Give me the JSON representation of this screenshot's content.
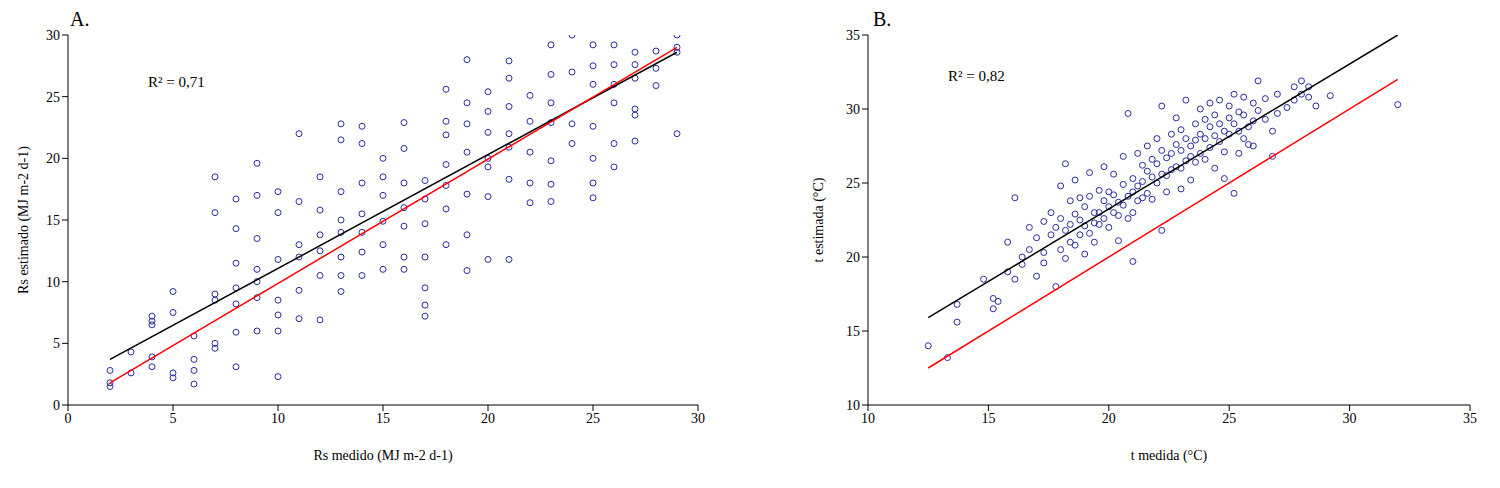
{
  "chart_data": [
    {
      "type": "scatter",
      "title": "A.",
      "xlabel": "Rs medido (MJ m-2 d-1)",
      "ylabel": "Rs estimado (MJ m-2 d-1)",
      "annotations": [
        "R² = 0,71"
      ],
      "xlim": [
        0,
        30
      ],
      "xticks": [
        0,
        5,
        10,
        15,
        20,
        25,
        30
      ],
      "ylim": [
        0,
        30
      ],
      "yticks": [
        0,
        5,
        10,
        15,
        20,
        25,
        30
      ],
      "grid": false,
      "series": [
        {
          "type": "scatter",
          "marker": "circle",
          "color": "#2b2b9e",
          "x": [
            2,
            2,
            2,
            3,
            3,
            4,
            4,
            4,
            4,
            4,
            5,
            5,
            5,
            5,
            6,
            6,
            6,
            6,
            7,
            7,
            7,
            7,
            7,
            7,
            8,
            8,
            8,
            8,
            8,
            8,
            8,
            9,
            9,
            9,
            9,
            9,
            9,
            9,
            10,
            10,
            10,
            10,
            10,
            10,
            10,
            11,
            11,
            11,
            11,
            11,
            11,
            12,
            12,
            12,
            12,
            12,
            12,
            13,
            13,
            13,
            13,
            13,
            13,
            13,
            13,
            14,
            14,
            14,
            14,
            14,
            14,
            14,
            15,
            15,
            15,
            15,
            15,
            15,
            16,
            16,
            16,
            16,
            16,
            16,
            16,
            17,
            17,
            17,
            17,
            17,
            17,
            17,
            18,
            18,
            18,
            18,
            18,
            18,
            18,
            19,
            19,
            19,
            19,
            19,
            19,
            19,
            20,
            20,
            20,
            20,
            20,
            20,
            20,
            21,
            21,
            21,
            21,
            21,
            21,
            21,
            22,
            22,
            22,
            22,
            22,
            23,
            23,
            23,
            23,
            23,
            23,
            23,
            24,
            24,
            24,
            24,
            25,
            25,
            25,
            25,
            25,
            25,
            25,
            26,
            26,
            26,
            26,
            26,
            26,
            27,
            27,
            27,
            27,
            27,
            27,
            28,
            28,
            28,
            29,
            29,
            29,
            29
          ],
          "y": [
            1.5,
            2.8,
            1.8,
            4.3,
            2.6,
            7.2,
            6.8,
            3.9,
            3.1,
            6.5,
            9.2,
            7.5,
            2.6,
            2.2,
            5.6,
            1.7,
            2.8,
            3.7,
            18.5,
            15.6,
            9.0,
            8.5,
            5.0,
            4.6,
            16.7,
            14.3,
            11.5,
            9.5,
            8.2,
            5.9,
            3.1,
            19.6,
            17.0,
            13.5,
            11.0,
            10.0,
            8.7,
            6.0,
            17.3,
            15.6,
            11.8,
            8.5,
            7.3,
            6.0,
            2.3,
            22.0,
            16.5,
            13.0,
            12.0,
            9.3,
            7.0,
            18.5,
            15.8,
            13.8,
            12.5,
            10.5,
            6.9,
            22.8,
            21.5,
            17.3,
            15.0,
            14.0,
            12.0,
            10.5,
            9.2,
            22.6,
            21.2,
            18.0,
            15.5,
            14.0,
            12.4,
            10.5,
            20.0,
            18.5,
            17.0,
            14.9,
            13.0,
            11.0,
            22.9,
            20.8,
            18.0,
            16.0,
            14.5,
            12.0,
            11.0,
            18.2,
            16.7,
            14.7,
            12.0,
            9.5,
            7.2,
            8.1,
            25.6,
            23.0,
            21.9,
            19.5,
            17.8,
            15.9,
            13.0,
            28.0,
            24.5,
            22.8,
            20.5,
            17.1,
            13.8,
            10.9,
            25.4,
            23.8,
            22.1,
            20.0,
            19.3,
            16.9,
            11.8,
            27.9,
            26.5,
            24.2,
            22.0,
            20.9,
            18.3,
            11.8,
            25.1,
            23.0,
            20.5,
            18.0,
            16.4,
            29.2,
            26.8,
            24.5,
            22.9,
            19.8,
            17.9,
            16.5,
            30.0,
            27.0,
            22.8,
            21.2,
            29.2,
            27.5,
            26.0,
            22.6,
            20.0,
            18.0,
            16.8,
            29.2,
            27.6,
            26.0,
            24.5,
            21.2,
            19.3,
            28.6,
            27.6,
            26.5,
            24.0,
            23.5,
            21.4,
            28.7,
            27.3,
            25.9,
            30.0,
            29.0,
            28.6,
            22.0
          ]
        },
        {
          "type": "line",
          "marker": "none",
          "line_style": "solid",
          "color": "#000000",
          "x": [
            2,
            29
          ],
          "y": [
            3.7,
            28.6
          ]
        },
        {
          "type": "line",
          "marker": "none",
          "line_style": "solid",
          "color": "#ff0000",
          "x": [
            2,
            29
          ],
          "y": [
            1.8,
            29
          ]
        }
      ]
    },
    {
      "type": "scatter",
      "title": "B.",
      "xlabel": "t medida (°C)",
      "ylabel": "t estimada (°C)",
      "annotations": [
        "R² = 0,82"
      ],
      "xlim": [
        10,
        35
      ],
      "xticks": [
        10,
        15,
        20,
        25,
        30,
        35
      ],
      "ylim": [
        10,
        35
      ],
      "yticks": [
        10,
        15,
        20,
        25,
        30,
        35
      ],
      "grid": false,
      "series": [
        {
          "type": "scatter",
          "marker": "circle",
          "color": "#2b2b9e",
          "x": [
            12.5,
            13.3,
            13.7,
            13.7,
            14.8,
            15.2,
            15.2,
            15.4,
            15.8,
            15.8,
            16.1,
            16.1,
            16.4,
            16.4,
            16.7,
            16.7,
            17,
            17,
            17.3,
            17.3,
            17.3,
            17.6,
            17.6,
            17.8,
            17.8,
            18,
            18,
            18,
            18.2,
            18.2,
            18.2,
            18.4,
            18.4,
            18.4,
            18.6,
            18.6,
            18.6,
            18.8,
            18.8,
            18.8,
            19,
            19,
            19,
            19.2,
            19.2,
            19.2,
            19.4,
            19.4,
            19.4,
            19.6,
            19.6,
            19.6,
            19.8,
            19.8,
            19.8,
            20,
            20,
            20,
            20.2,
            20.2,
            20.2,
            20.4,
            20.4,
            20.4,
            20.6,
            20.6,
            20.6,
            20.8,
            20.8,
            20.8,
            21,
            21,
            21,
            21,
            21.2,
            21.2,
            21.2,
            21.4,
            21.4,
            21.4,
            21.6,
            21.6,
            21.6,
            21.8,
            21.8,
            21.8,
            22,
            22,
            22,
            22.2,
            22.2,
            22.2,
            22.2,
            22.4,
            22.4,
            22.4,
            22.6,
            22.6,
            22.6,
            22.8,
            22.8,
            22.8,
            23,
            23,
            23,
            23,
            23.2,
            23.2,
            23.2,
            23.4,
            23.4,
            23.4,
            23.6,
            23.6,
            23.6,
            23.8,
            23.8,
            23.8,
            24,
            24,
            24,
            24.2,
            24.2,
            24.2,
            24.4,
            24.4,
            24.4,
            24.6,
            24.6,
            24.6,
            24.8,
            24.8,
            24.8,
            25,
            25,
            25,
            25.2,
            25.2,
            25.2,
            25.4,
            25.4,
            25.4,
            25.6,
            25.6,
            25.6,
            25.8,
            25.8,
            26,
            26,
            26,
            26.2,
            26.2,
            26.5,
            26.5,
            26.8,
            26.8,
            27,
            27,
            27.4,
            27.7,
            27.7,
            28,
            28,
            28.3,
            28.3,
            28.6,
            29.2,
            32
          ],
          "y": [
            14.0,
            13.2,
            16.8,
            15.6,
            18.5,
            16.5,
            17.2,
            17.0,
            21.0,
            19.0,
            24.0,
            18.5,
            20.0,
            19.5,
            22.0,
            20.5,
            21.3,
            18.7,
            22.4,
            20.3,
            19.6,
            23.0,
            21.5,
            22.0,
            18.0,
            24.8,
            22.6,
            20.5,
            26.3,
            21.8,
            19.9,
            23.8,
            22.2,
            21.0,
            25.2,
            22.9,
            20.8,
            24.0,
            22.5,
            21.5,
            23.4,
            22.1,
            20.2,
            25.7,
            24.1,
            21.6,
            23.0,
            22.3,
            21.0,
            24.5,
            23.0,
            22.2,
            26.1,
            23.8,
            22.6,
            24.4,
            23.4,
            22.0,
            25.6,
            24.2,
            23.0,
            23.7,
            22.8,
            21.1,
            26.8,
            24.9,
            23.5,
            29.7,
            24.1,
            22.6,
            25.3,
            24.4,
            23.0,
            19.7,
            27.0,
            24.8,
            23.8,
            26.2,
            25.1,
            24.0,
            27.5,
            25.8,
            24.3,
            26.6,
            25.4,
            23.9,
            28.0,
            26.3,
            25.0,
            30.2,
            27.2,
            25.6,
            21.8,
            26.7,
            25.5,
            24.4,
            28.3,
            27.0,
            25.9,
            29.4,
            27.6,
            26.1,
            28.6,
            27.2,
            26.0,
            24.6,
            30.6,
            28.0,
            26.5,
            27.5,
            26.8,
            25.2,
            29.0,
            27.9,
            26.4,
            30.0,
            28.3,
            27.0,
            29.3,
            28.0,
            26.6,
            30.4,
            28.8,
            27.4,
            29.6,
            28.2,
            26.0,
            30.6,
            29.0,
            27.8,
            28.5,
            27.1,
            25.3,
            30.2,
            29.4,
            28.3,
            31.0,
            29.0,
            24.3,
            29.8,
            28.5,
            27.0,
            30.8,
            29.6,
            28.0,
            28.8,
            27.6,
            30.4,
            29.2,
            27.5,
            31.9,
            29.9,
            30.7,
            29.3,
            28.5,
            26.8,
            31.0,
            29.7,
            30.1,
            31.5,
            30.6,
            31.9,
            31.0,
            31.5,
            30.8,
            30.2,
            30.9,
            30.3
          ]
        },
        {
          "type": "line",
          "marker": "none",
          "line_style": "solid",
          "color": "#000000",
          "x": [
            12.5,
            32
          ],
          "y": [
            15.9,
            35
          ]
        },
        {
          "type": "line",
          "marker": "none",
          "line_style": "solid",
          "color": "#ff0000",
          "x": [
            12.5,
            32
          ],
          "y": [
            12.5,
            32
          ]
        }
      ]
    }
  ]
}
